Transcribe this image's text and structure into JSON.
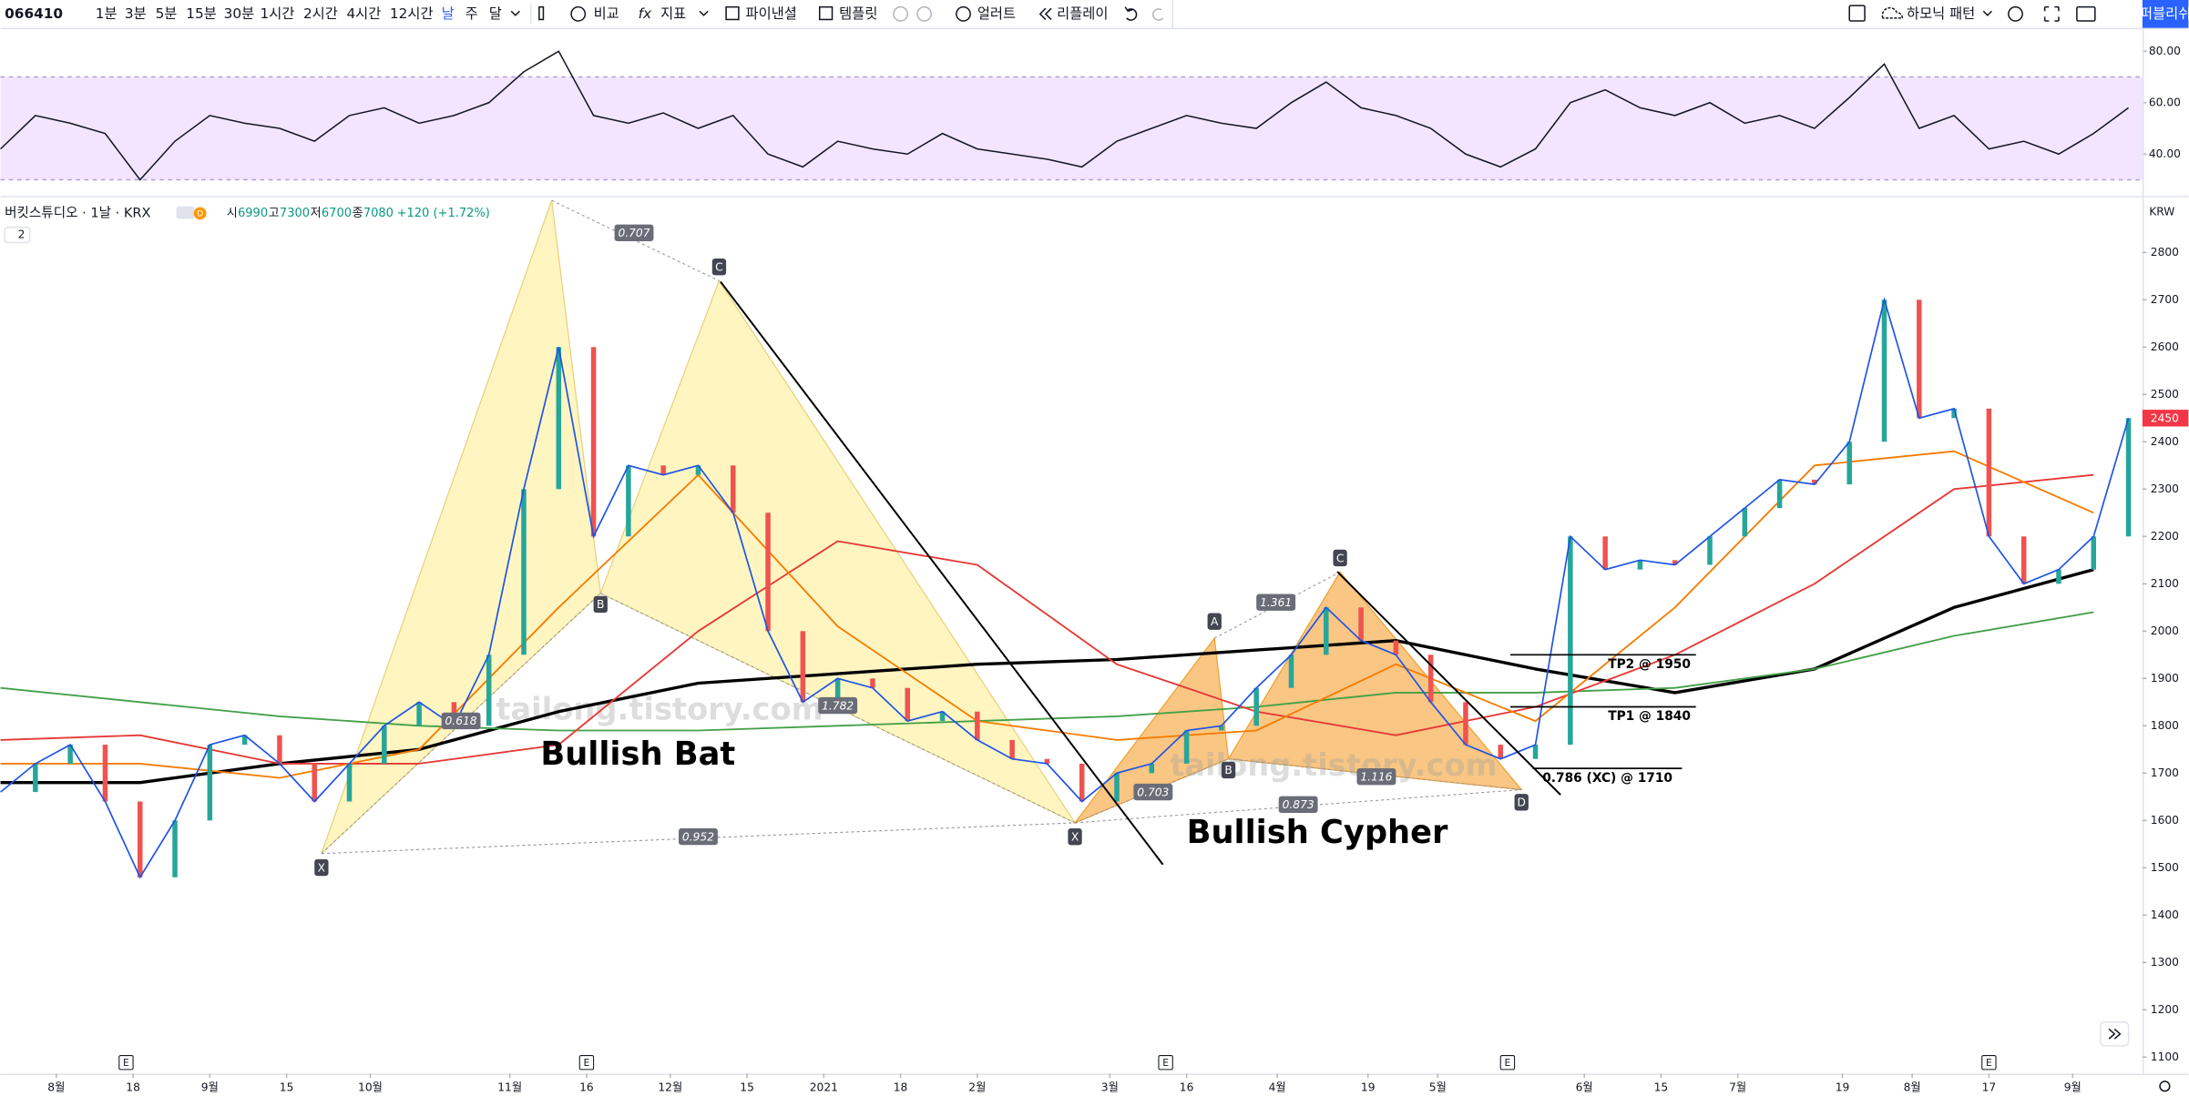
{
  "toolbar": {
    "symbol": "066410",
    "intervals": [
      "1분",
      "3분",
      "5분",
      "15분",
      "30분",
      "1시간",
      "2시간",
      "4시간",
      "12시간",
      "날",
      "주",
      "달"
    ],
    "buttons": [
      "비교",
      "지표",
      "파이낸셜",
      "템플릿",
      "얼러트",
      "리플레이"
    ],
    "pattern_menu": "하모닉 패턴",
    "publish": "퍼블리쉬"
  },
  "legend": {
    "symbol": "버킷스튜디오 · 1날 · KRX",
    "ohlc": [
      {
        "label": "시",
        "value": 6990
      },
      {
        "label": "고",
        "value": 7300
      },
      {
        "label": "저",
        "value": 6700
      },
      {
        "label": "종",
        "value": 7080
      }
    ],
    "change": "+120 (+1.72%)",
    "count": "2",
    "currency": "KRW"
  },
  "watermark": "tailong.tistory.com",
  "chart_data": {
    "type": "line",
    "xlim": [
      0,
      307
    ],
    "ylim": [
      1065,
      2915
    ],
    "yticks": [
      1100,
      1200,
      1300,
      1400,
      1500,
      1600,
      1700,
      1800,
      1900,
      2000,
      2100,
      2200,
      2300,
      2400,
      2500,
      2600,
      2700,
      2800
    ],
    "xticks": [
      {
        "value": 8,
        "label": "8월"
      },
      {
        "value": 19,
        "label": "18"
      },
      {
        "value": 30,
        "label": "9월"
      },
      {
        "value": 41,
        "label": "15"
      },
      {
        "value": 53,
        "label": "10월"
      },
      {
        "value": 73,
        "label": "11월"
      },
      {
        "value": 84,
        "label": "16"
      },
      {
        "value": 96,
        "label": "12월"
      },
      {
        "value": 107,
        "label": "15"
      },
      {
        "value": 118,
        "label": "2021"
      },
      {
        "value": 129,
        "label": "18"
      },
      {
        "value": 140,
        "label": "2월"
      },
      {
        "value": 159,
        "label": "3월"
      },
      {
        "value": 170,
        "label": "16"
      },
      {
        "value": 183,
        "label": "4월"
      },
      {
        "value": 196,
        "label": "19"
      },
      {
        "value": 206,
        "label": "5월"
      },
      {
        "value": 227,
        "label": "6월"
      },
      {
        "value": 238,
        "label": "15"
      },
      {
        "value": 249,
        "label": "7월"
      },
      {
        "value": 264,
        "label": "19"
      },
      {
        "value": 274,
        "label": "8월"
      },
      {
        "value": 285,
        "label": "17"
      },
      {
        "value": 297,
        "label": "9월"
      }
    ],
    "grid": false,
    "last_price": {
      "value": 2450,
      "color": "#f23645"
    },
    "x": [
      0,
      5,
      10,
      15,
      20,
      25,
      30,
      35,
      40,
      45,
      50,
      55,
      60,
      65,
      70,
      75,
      80,
      85,
      90,
      95,
      100,
      105,
      110,
      115,
      120,
      125,
      130,
      135,
      140,
      145,
      150,
      155,
      160,
      165,
      170,
      175,
      180,
      185,
      190,
      195,
      200,
      205,
      210,
      215,
      220,
      225,
      230,
      235,
      240,
      245,
      250,
      255,
      260,
      265,
      270,
      275,
      280,
      285,
      290,
      295,
      300,
      305
    ],
    "series": [
      {
        "color": "#1e53e5",
        "values": [
          1660,
          1720,
          1760,
          1640,
          1480,
          1600,
          1760,
          1780,
          1720,
          1640,
          1720,
          1800,
          1850,
          1800,
          1950,
          2300,
          2600,
          2200,
          2350,
          2330,
          2350,
          2250,
          2000,
          1850,
          1900,
          1880,
          1810,
          1830,
          1770,
          1730,
          1720,
          1640,
          1700,
          1720,
          1790,
          1800,
          1880,
          1950,
          2050,
          1980,
          1950,
          1850,
          1760,
          1730,
          1760,
          2200,
          2130,
          2150,
          2140,
          2200,
          2260,
          2320,
          2310,
          2400,
          2700,
          2450,
          2470,
          2200,
          2100,
          2130,
          2200,
          2450
        ]
      }
    ],
    "moving_averages": {
      "x": [
        0,
        20,
        40,
        60,
        80,
        100,
        120,
        140,
        160,
        180,
        200,
        220,
        240,
        260,
        280,
        300
      ],
      "series": [
        {
          "color": "#000000",
          "width": 2.2,
          "values": [
            1680,
            1680,
            1720,
            1750,
            1830,
            1890,
            1910,
            1930,
            1940,
            1960,
            1980,
            1920,
            1870,
            1920,
            2050,
            2130
          ]
        },
        {
          "color": "#43a047",
          "width": 1.2,
          "values": [
            1880,
            1850,
            1820,
            1800,
            1790,
            1790,
            1800,
            1810,
            1820,
            1840,
            1870,
            1870,
            1880,
            1920,
            1990,
            2040
          ]
        },
        {
          "color": "#e53935",
          "width": 1.2,
          "values": [
            1770,
            1780,
            1720,
            1720,
            1760,
            2000,
            2190,
            2140,
            1930,
            1830,
            1780,
            1840,
            1950,
            2100,
            2300,
            2330
          ]
        },
        {
          "color": "#f57c00",
          "width": 1.2,
          "values": [
            1720,
            1720,
            1690,
            1750,
            2050,
            2330,
            2010,
            1810,
            1770,
            1790,
            1930,
            1810,
            2050,
            2350,
            2380,
            2250
          ]
        }
      ]
    },
    "rsi": {
      "ylim": [
        24,
        88
      ],
      "band": [
        30,
        70
      ],
      "color": "#131722",
      "yticks": [
        {
          "value": 40,
          "label": "40.00"
        },
        {
          "value": 60,
          "label": "60.00"
        },
        {
          "value": 80,
          "label": "80.00"
        }
      ],
      "values": [
        42,
        55,
        52,
        48,
        30,
        45,
        55,
        52,
        50,
        45,
        55,
        58,
        52,
        55,
        60,
        72,
        80,
        55,
        52,
        56,
        50,
        55,
        40,
        35,
        45,
        42,
        40,
        48,
        42,
        40,
        38,
        35,
        45,
        50,
        55,
        52,
        50,
        60,
        68,
        58,
        55,
        50,
        40,
        35,
        42,
        60,
        65,
        58,
        55,
        60,
        52,
        55,
        50,
        62,
        75,
        50,
        55,
        42,
        45,
        40,
        48,
        58
      ]
    },
    "earnings": {
      "label": "E",
      "x": [
        18,
        84,
        167,
        216,
        285
      ]
    },
    "patterns": [
      {
        "name": "Bullish Bat",
        "color": "#fff0a0",
        "x": [
          46,
          79,
          86,
          103,
          154
        ],
        "price": [
          1530,
          2910,
          2080,
          2740,
          1595
        ],
        "labels": [
          "X",
          null,
          "B",
          "C",
          null
        ],
        "ratios": [
          0.707,
          0.618,
          1.782,
          0.952
        ]
      },
      {
        "name": "Bullish Cypher",
        "color": "#f7b35a",
        "x": [
          154,
          174,
          176,
          192,
          218
        ],
        "price": [
          1595,
          1985,
          1730,
          2125,
          1665
        ],
        "labels": [
          "X",
          "A",
          "B",
          "C",
          "D"
        ],
        "ratios": [
          0.703,
          1.361,
          1.116,
          0.873
        ]
      }
    ],
    "levels": [
      {
        "label": "TP2 @ 1950",
        "price": 1950
      },
      {
        "label": "TP1 @ 1840",
        "price": 1840
      },
      {
        "label": "0.786 (XC) @ 1710",
        "price": 1710
      }
    ]
  }
}
